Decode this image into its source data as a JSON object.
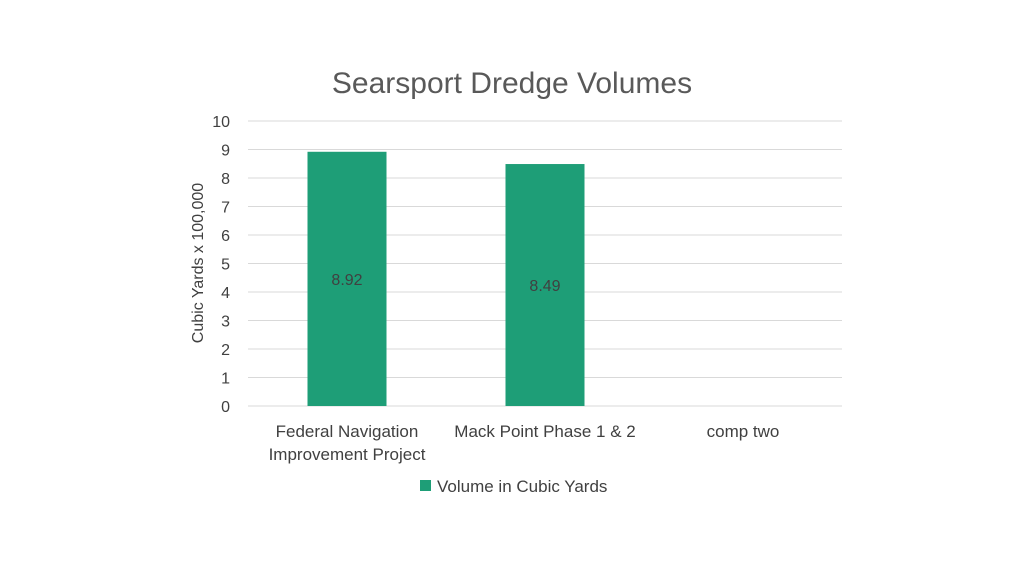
{
  "chart_data": {
    "type": "bar",
    "title": "Searsport Dredge Volumes",
    "xlabel": "",
    "ylabel": "Cubic Yards x 100,000",
    "ylim": [
      0,
      10
    ],
    "yticks": [
      0,
      1,
      2,
      3,
      4,
      5,
      6,
      7,
      8,
      9,
      10
    ],
    "categories": [
      [
        "Federal Navigation",
        "Improvement Project"
      ],
      [
        "Mack Point Phase 1 & 2"
      ],
      [
        "comp two"
      ]
    ],
    "series": [
      {
        "name": "Volume in Cubic Yards",
        "color": "#1e9e77",
        "values": [
          8.92,
          8.49,
          null
        ],
        "data_labels": [
          "8.92",
          "8.49",
          ""
        ]
      }
    ],
    "grid": true,
    "legend_position": "bottom"
  }
}
